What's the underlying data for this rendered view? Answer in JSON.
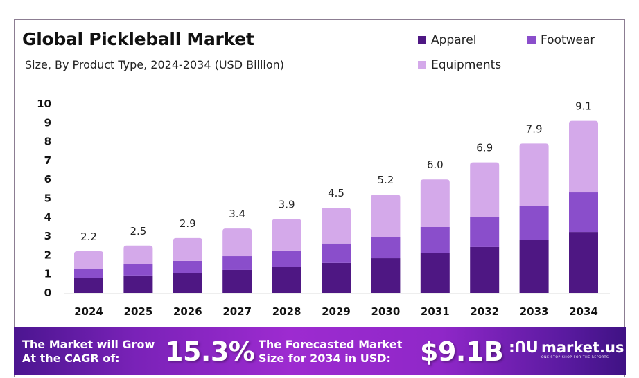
{
  "header": {
    "title": "Global Pickleball Market",
    "subtitle": "Size, By Product Type, 2024-2034 (USD Billion)"
  },
  "legend": [
    {
      "label": "Apparel",
      "color": "#4e1783"
    },
    {
      "label": "Footwear",
      "color": "#8a4ecb"
    },
    {
      "label": "Equipments",
      "color": "#d4a9ea"
    }
  ],
  "chart_data": {
    "type": "bar",
    "stacked": true,
    "title": "Global Pickleball Market",
    "subtitle": "Size, By Product Type, 2024-2034 (USD Billion)",
    "xlabel": "",
    "ylabel": "",
    "ylim": [
      0,
      10
    ],
    "yticks": [
      "0",
      "1",
      "2",
      "3",
      "4",
      "5",
      "6",
      "7",
      "8",
      "9",
      "10"
    ],
    "grid": false,
    "legend_position": "top-right",
    "categories": [
      "2024",
      "2025",
      "2026",
      "2027",
      "2028",
      "2029",
      "2030",
      "2031",
      "2032",
      "2033",
      "2034"
    ],
    "series": [
      {
        "name": "Apparel",
        "color": "#4e1783",
        "values": [
          0.77,
          0.92,
          1.03,
          1.21,
          1.36,
          1.58,
          1.83,
          2.09,
          2.42,
          2.82,
          3.22
        ]
      },
      {
        "name": "Footwear",
        "color": "#8a4ecb",
        "values": [
          0.51,
          0.59,
          0.66,
          0.73,
          0.88,
          1.03,
          1.13,
          1.39,
          1.58,
          1.79,
          2.09
        ]
      },
      {
        "name": "Equipments",
        "color": "#d4a9ea",
        "values": [
          0.92,
          0.99,
          1.21,
          1.46,
          1.66,
          1.89,
          2.24,
          2.52,
          2.9,
          3.29,
          3.79
        ]
      }
    ],
    "totals": [
      "2.2",
      "2.5",
      "2.9",
      "3.4",
      "3.9",
      "4.5",
      "5.2",
      "6.0",
      "6.9",
      "7.9",
      "9.1"
    ]
  },
  "footer": {
    "cagr_label_line1": "The Market will Grow",
    "cagr_label_line2": "At the CAGR of:",
    "cagr_value": "15.3%",
    "forecast_label_line1": "The Forecasted Market",
    "forecast_label_line2": "Size for 2034 in USD:",
    "forecast_value": "$9.1B",
    "brand_name": "market.us",
    "brand_tagline": "ONE STOP SHOP FOR THE REPORTS"
  }
}
